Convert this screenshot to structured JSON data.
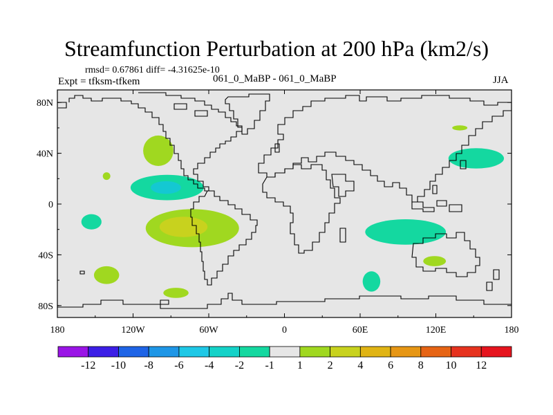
{
  "title": "Streamfunction Perturbation at 200 hPa (km2/s)",
  "stats": "rmsd= 0.67861  diff= -4.31625e-10",
  "expt_label": "Expt = tfksm-tfkem",
  "case_label": "061_0_MaBP - 061_0_MaBP",
  "season": "JJA",
  "map": {
    "background_color": "#e6e6e6",
    "lat_ticks": [
      {
        "value": 80,
        "label": "80N"
      },
      {
        "value": 40,
        "label": "40N"
      },
      {
        "value": 0,
        "label": "0"
      },
      {
        "value": -40,
        "label": "40S"
      },
      {
        "value": -80,
        "label": "80S"
      }
    ],
    "lon_ticks": [
      {
        "value": -180,
        "label": "180"
      },
      {
        "value": -120,
        "label": "120W"
      },
      {
        "value": -60,
        "label": "60W"
      },
      {
        "value": 0,
        "label": "0"
      },
      {
        "value": 60,
        "label": "60E"
      },
      {
        "value": 120,
        "label": "120E"
      },
      {
        "value": 180,
        "label": "180"
      }
    ],
    "anomalies": [
      {
        "name": "anomaly-n-pacific-positive",
        "level": "1 to 2",
        "color": "#a0d820",
        "lon": -100,
        "lat": 42,
        "rlon": 12,
        "rlat": 12
      },
      {
        "name": "anomaly-w-pacific-small-positive",
        "level": "1 to 2",
        "color": "#a0d820",
        "lon": -141,
        "lat": 22,
        "rlon": 3,
        "rlat": 3
      },
      {
        "name": "anomaly-e-pacific-negative",
        "level": "-2 to -1",
        "color": "#14d8a0",
        "lon": -93,
        "lat": 13,
        "rlon": 29,
        "rlat": 10
      },
      {
        "name": "anomaly-e-pacific-negative-core",
        "level": "-4 to -2",
        "color": "#14c8d2",
        "lon": -94,
        "lat": 13,
        "rlon": 12,
        "rlat": 5
      },
      {
        "name": "anomaly-s-pacific-positive",
        "level": "1 to 2",
        "color": "#a0d820",
        "lon": -73,
        "lat": -19,
        "rlon": 37,
        "rlat": 15
      },
      {
        "name": "anomaly-s-pacific-positive-core",
        "level": "2 to 4",
        "color": "#c8d21e",
        "lon": -80,
        "lat": -18,
        "rlon": 19,
        "rlat": 8
      },
      {
        "name": "anomaly-sw-pacific-negative",
        "level": "-2 to -1",
        "color": "#14d8a0",
        "lon": -153,
        "lat": -14,
        "rlon": 8,
        "rlat": 6
      },
      {
        "name": "anomaly-s-pacific-small-positive",
        "level": "1 to 2",
        "color": "#a0d820",
        "lon": -141,
        "lat": -56,
        "rlon": 10,
        "rlat": 7
      },
      {
        "name": "anomaly-southern-ocean-positive",
        "level": "1 to 2",
        "color": "#a0d820",
        "lon": -86,
        "lat": -70,
        "rlon": 10,
        "rlat": 4
      },
      {
        "name": "anomaly-n-pacific-east-negative",
        "level": "-2 to -1",
        "color": "#14d8a0",
        "lon": 152,
        "lat": 36,
        "rlon": 22,
        "rlat": 8
      },
      {
        "name": "anomaly-e-asia-small-positive",
        "level": "1 to 2",
        "color": "#a0d820",
        "lon": 139,
        "lat": 60,
        "rlon": 6,
        "rlat": 2
      },
      {
        "name": "anomaly-indian-ocean-negative",
        "level": "-2 to -1",
        "color": "#14d8a0",
        "lon": 96,
        "lat": -22,
        "rlon": 32,
        "rlat": 10
      },
      {
        "name": "anomaly-australia-positive",
        "level": "1 to 2",
        "color": "#a0d820",
        "lon": 119,
        "lat": -45,
        "rlon": 9,
        "rlat": 4
      },
      {
        "name": "anomaly-s-indian-negative",
        "level": "-2 to -1",
        "color": "#14d8a0",
        "lon": 69,
        "lat": -61,
        "rlon": 7,
        "rlat": 8
      }
    ]
  },
  "colorbar": {
    "boxes": [
      {
        "color": "#9a14e6"
      },
      {
        "color": "#3c1ee6"
      },
      {
        "color": "#1e64e6"
      },
      {
        "color": "#1e96e6"
      },
      {
        "color": "#1ec8e6"
      },
      {
        "color": "#14d2c8"
      },
      {
        "color": "#14d8a0"
      },
      {
        "color": "#e6e6e6"
      },
      {
        "color": "#a0d820"
      },
      {
        "color": "#c8d21e"
      },
      {
        "color": "#e0b414"
      },
      {
        "color": "#e69614"
      },
      {
        "color": "#e66414"
      },
      {
        "color": "#e6321e"
      },
      {
        "color": "#e6141e"
      }
    ],
    "labels": [
      "-12",
      "-10",
      "-8",
      "-6",
      "-4",
      "-2",
      "-1",
      "1",
      "2",
      "4",
      "6",
      "8",
      "10",
      "12"
    ]
  }
}
